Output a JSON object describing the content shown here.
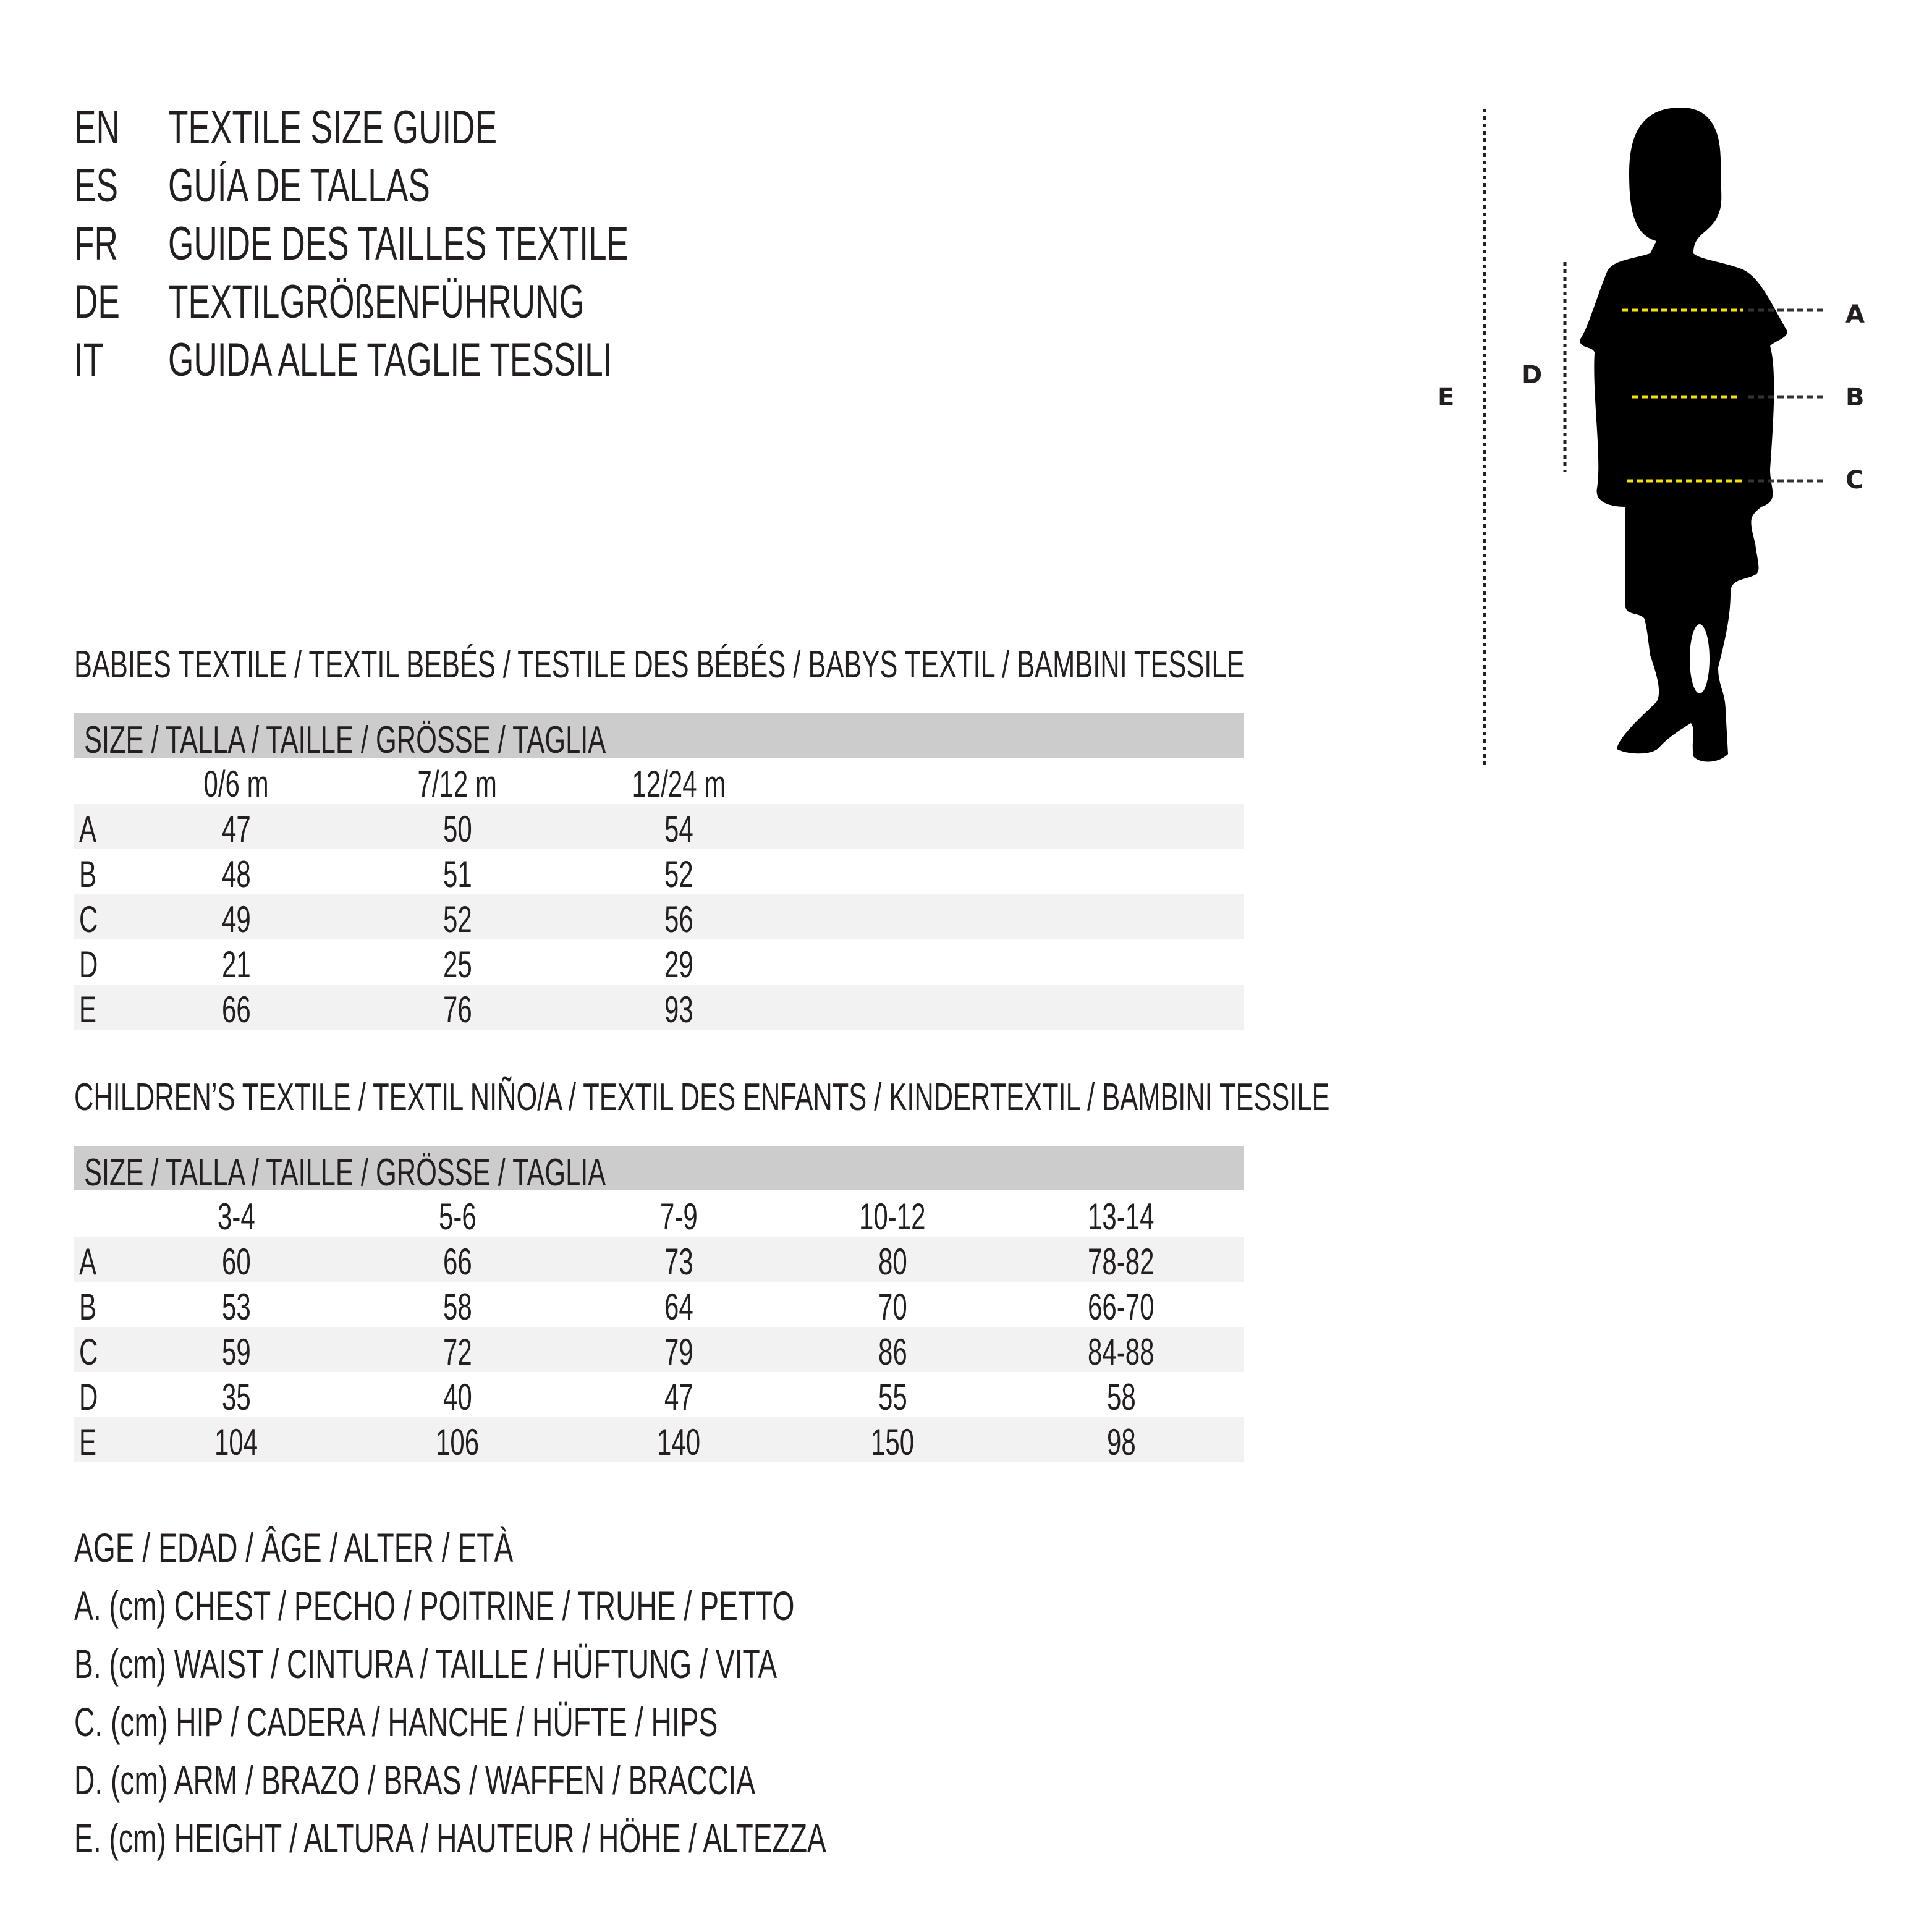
{
  "titles": [
    {
      "code": "EN",
      "text": "TEXTILE SIZE GUIDE"
    },
    {
      "code": "ES",
      "text": "GUÍA DE TALLAS"
    },
    {
      "code": "FR",
      "text": "GUIDE DES TAILLES TEXTILE"
    },
    {
      "code": "DE",
      "text": "TEXTILGRÖßENFÜHRUNG"
    },
    {
      "code": "IT",
      "text": "GUIDA ALLE TAGLIE TESSILI"
    }
  ],
  "figure": {
    "labels": {
      "A": "A",
      "B": "B",
      "C": "C",
      "D": "D",
      "E": "E"
    },
    "guide_color": "#f5e10a",
    "silhouette_color": "#000000"
  },
  "babies": {
    "title": "BABIES TEXTILE / TEXTIL BEBÉS / TESTILE DES BÉBÉS / BABYS TEXTIL / BAMBINI TESSILE",
    "size_header": "SIZE / TALLA / TAILLE / GRÖSSE / TAGLIA",
    "columns": [
      "0/6 m",
      "7/12 m",
      "12/24 m"
    ],
    "rows": [
      {
        "label": "A",
        "values": [
          "47",
          "50",
          "54"
        ]
      },
      {
        "label": "B",
        "values": [
          "48",
          "51",
          "52"
        ]
      },
      {
        "label": "C",
        "values": [
          "49",
          "52",
          "56"
        ]
      },
      {
        "label": "D",
        "values": [
          "21",
          "25",
          "29"
        ]
      },
      {
        "label": "E",
        "values": [
          "66",
          "76",
          "93"
        ]
      }
    ]
  },
  "children": {
    "title": "CHILDREN’S TEXTILE / TEXTIL NIÑO/A / TEXTIL DES ENFANTS / KINDERTEXTIL / BAMBINI TESSILE",
    "size_header": "SIZE / TALLA / TAILLE / GRÖSSE / TAGLIA",
    "columns": [
      "3-4",
      "5-6",
      "7-9",
      "10-12",
      "13-14"
    ],
    "rows": [
      {
        "label": "A",
        "values": [
          "60",
          "66",
          "73",
          "80",
          "78-82"
        ]
      },
      {
        "label": "B",
        "values": [
          "53",
          "58",
          "64",
          "70",
          "66-70"
        ]
      },
      {
        "label": "C",
        "values": [
          "59",
          "72",
          "79",
          "86",
          "84-88"
        ]
      },
      {
        "label": "D",
        "values": [
          "35",
          "40",
          "47",
          "55",
          "58"
        ]
      },
      {
        "label": "E",
        "values": [
          "104",
          "106",
          "140",
          "150",
          "98"
        ]
      }
    ]
  },
  "legend": [
    "AGE / EDAD / ÂGE / ALTER / ETÀ",
    "A. (cm) CHEST / PECHO / POITRINE / TRUHE / PETTO",
    "B. (cm) WAIST / CINTURA / TAILLE / HÜFTUNG / VITA",
    "C. (cm) HIP / CADERA / HANCHE / HÜFTE / HIPS",
    "D. (cm) ARM / BRAZO / BRAS / WAFFEN / BRACCIA",
    "E. (cm) HEIGHT / ALTURA / HAUTEUR / HÖHE / ALTEZZA"
  ]
}
